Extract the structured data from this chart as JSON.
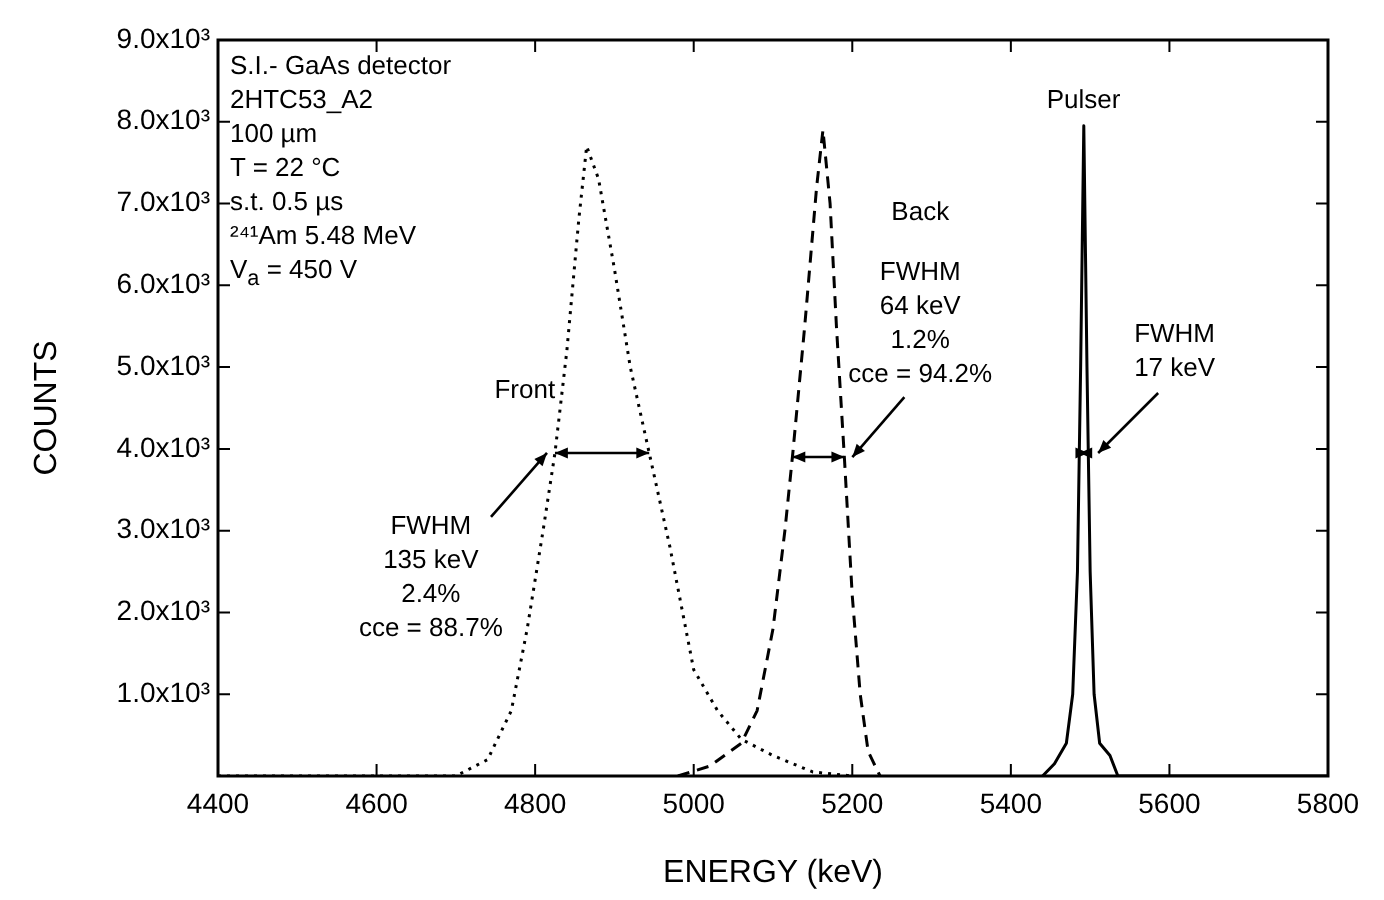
{
  "chart_data": {
    "type": "line",
    "xlabel": "ENERGY (keV)",
    "ylabel": "COUNTS",
    "xlim": [
      4400,
      5800
    ],
    "xticks": [
      4400,
      4600,
      4800,
      5000,
      5200,
      5400,
      5600,
      5800
    ],
    "ylim": [
      0,
      9000
    ],
    "yticks": [
      {
        "value": 1000,
        "label": "1.0x10³"
      },
      {
        "value": 2000,
        "label": "2.0x10³"
      },
      {
        "value": 3000,
        "label": "3.0x10³"
      },
      {
        "value": 4000,
        "label": "4.0x10³"
      },
      {
        "value": 5000,
        "label": "5.0x10³"
      },
      {
        "value": 6000,
        "label": "6.0x10³"
      },
      {
        "value": 7000,
        "label": "7.0x10³"
      },
      {
        "value": 8000,
        "label": "8.0x10³"
      },
      {
        "value": 9000,
        "label": "9.0x10³"
      }
    ],
    "grid": false,
    "legend": false,
    "marker": "none",
    "series": [
      {
        "name": "Front",
        "color": "#000000",
        "line_style": "dotted",
        "x": [
          4400,
          4700,
          4740,
          4770,
          4790,
          4810,
          4825,
          4840,
          4855,
          4865,
          4880,
          4900,
          4920,
          4945,
          4970,
          5000,
          5030,
          5060,
          5100,
          5150,
          5200
        ],
        "values": [
          0,
          0,
          200,
          800,
          1800,
          3000,
          3950,
          5200,
          6800,
          7700,
          7300,
          6200,
          5000,
          3900,
          2800,
          1300,
          800,
          450,
          250,
          50,
          0
        ]
      },
      {
        "name": "Back",
        "color": "#000000",
        "line_style": "dashed",
        "x": [
          4980,
          5020,
          5060,
          5080,
          5100,
          5115,
          5125,
          5140,
          5155,
          5163,
          5172,
          5180,
          5190,
          5200,
          5210,
          5220,
          5235
        ],
        "values": [
          0,
          120,
          400,
          800,
          1800,
          3000,
          3950,
          5500,
          7200,
          7900,
          7000,
          5500,
          3900,
          2200,
          1000,
          300,
          0
        ]
      },
      {
        "name": "Pulser",
        "color": "#000000",
        "line_style": "solid",
        "x": [
          5440,
          5455,
          5470,
          5478,
          5484,
          5488,
          5492,
          5496,
          5500,
          5505,
          5512,
          5525,
          5535,
          5800
        ],
        "values": [
          0,
          150,
          400,
          1000,
          2500,
          5000,
          7950,
          5000,
          2500,
          1000,
          400,
          250,
          0,
          0
        ]
      }
    ],
    "annotations": [
      "S.I.- GaAs detector\n2HTC53_A2\n100 µm\nT = 22 °C\ns.t. 0.5 µs\n²⁴¹Am 5.48 MeV\nV$_{a}$ = 450 V",
      {
        "text": "FWHM\n135 keV\n2.4%\ncce = 88.7%",
        "x": 4825,
        "y": 3950
      },
      {
        "text": "FWHM\n64 keV\n1.2%\ncce = 94.2%",
        "x": 5190,
        "y": 3900
      },
      {
        "text": "FWHM\n17 keV",
        "x": 5500,
        "y": 3950
      }
    ]
  }
}
